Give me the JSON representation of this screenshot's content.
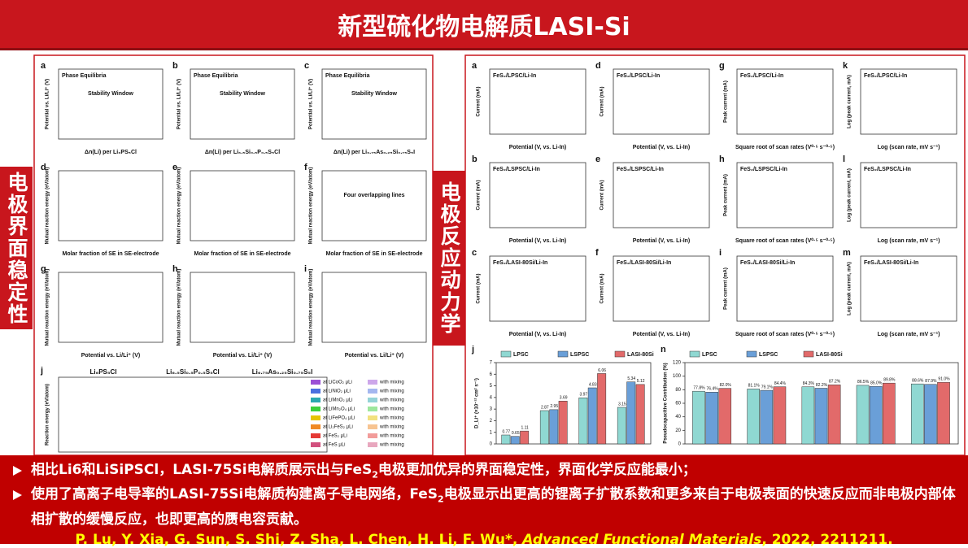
{
  "header": {
    "title": "新型硫化物电解质LASI-Si"
  },
  "side_labels": {
    "left": "电极界面稳定性",
    "right": "电极反应动力学"
  },
  "left_figure": {
    "panels": [
      {
        "letter": "a",
        "title": "Phase Equilibria",
        "xlabel": "Δn(Li) per Li₆PS₅Cl",
        "ylabel": "Potential vs. Li/Li⁺ (V)",
        "note": "Stability Window"
      },
      {
        "letter": "b",
        "title": "Phase Equilibria",
        "xlabel": "Δn(Li) per Li₆.₅Si₀.₅P₀.₅S₅Cl",
        "ylabel": "Potential vs. Li/Li⁺ (V)",
        "note": "Stability Window"
      },
      {
        "letter": "c",
        "title": "Phase Equilibria",
        "xlabel": "Δn(Li) per Li₆.₇₅As₀.₂₅Si₀.₇₅S₅I",
        "ylabel": "Potential vs. Li/Li⁺ (V)",
        "note": "Stability Window"
      },
      {
        "letter": "d",
        "xlabel": "Molar fraction of SE in SE-electrode",
        "ylabel": "Mutual reaction energy (eV/atom)"
      },
      {
        "letter": "e",
        "xlabel": "Molar fraction of SE in SE-electrode",
        "ylabel": "Mutual reaction energy (eV/atom)"
      },
      {
        "letter": "f",
        "xlabel": "Molar fraction of SE in SE-electrode",
        "ylabel": "Mutual reaction energy (eV/atom)",
        "note": "Four overlapping lines"
      },
      {
        "letter": "g",
        "xlabel": "Potential vs. Li/Li⁺ (V)",
        "ylabel": "Mutual reaction energy (eV/atom)"
      },
      {
        "letter": "h",
        "xlabel": "Potential vs. Li/Li⁺ (V)",
        "ylabel": "Mutual reaction energy (eV/atom)"
      },
      {
        "letter": "i",
        "xlabel": "Potential vs. Li/Li⁺ (V)",
        "ylabel": "Mutual reaction energy (eV/atom)"
      }
    ],
    "j": {
      "letter": "j",
      "ylabel": "Reaction energy (eV/atom)",
      "groups": [
        "Li₆PS₅Cl",
        "Li₆.₅Si₀.₅P₀.₅S₅Cl",
        "Li₆.₇₅As₀.₂₅Si₀.₇₅S₅I"
      ],
      "legend": [
        {
          "name": "at LiCoO₂ μLi",
          "color": "#9b4fd6"
        },
        {
          "name": "at LiNiO₂ μLi",
          "color": "#4a6fe0"
        },
        {
          "name": "at LiMnO₂ μLi",
          "color": "#2aa8b0"
        },
        {
          "name": "at LiMn₂O₄ μLi",
          "color": "#3ccf3c"
        },
        {
          "name": "at LiFePO₄ μLi",
          "color": "#e6c400"
        },
        {
          "name": "at Li₂FeS₂ μLi",
          "color": "#f08a24"
        },
        {
          "name": "at FeS₂ μLi",
          "color": "#e53935"
        },
        {
          "name": "at FeS μLi",
          "color": "#d2507e"
        }
      ],
      "mixing_label": "with mixing"
    }
  },
  "right_figure": {
    "panels": [
      {
        "letter": "a",
        "title": "FeS₂/LPSC/Li-In",
        "xlabel": "Potential (V, vs. Li-In)",
        "ylabel": "Current (mA)"
      },
      {
        "letter": "d",
        "title": "FeS₂/LPSC/Li-In",
        "xlabel": "Potential (V, vs. Li-In)",
        "ylabel": "Current (mA)"
      },
      {
        "letter": "g",
        "title": "FeS₂/LPSC/Li-In",
        "xlabel": "Square root of scan rates (V⁰·⁵ s⁻⁰·⁵)",
        "ylabel": "Peak current (mA)"
      },
      {
        "letter": "k",
        "title": "FeS₂/LPSC/Li-In",
        "xlabel": "Log (scan rate, mV s⁻¹)",
        "ylabel": "Log (peak current, mA)"
      },
      {
        "letter": "b",
        "title": "FeS₂/LSPSC/Li-In",
        "xlabel": "Potential (V, vs. Li-In)",
        "ylabel": "Current (mA)"
      },
      {
        "letter": "e",
        "title": "FeS₂/LSPSC/Li-In",
        "xlabel": "Potential (V, vs. Li-In)",
        "ylabel": "Current (mA)"
      },
      {
        "letter": "h",
        "title": "FeS₂/LSPSC/Li-In",
        "xlabel": "Square root of scan rates (V⁰·⁵ s⁻⁰·⁵)",
        "ylabel": "Peak current (mA)"
      },
      {
        "letter": "l",
        "title": "FeS₂/LSPSC/Li-In",
        "xlabel": "Log (scan rate, mV s⁻¹)",
        "ylabel": "Log (peak current, mA)"
      },
      {
        "letter": "c",
        "title": "FeS₂/LASI-80Si/Li-In",
        "xlabel": "Potential (V, vs. Li-In)",
        "ylabel": "Current (mA)"
      },
      {
        "letter": "f",
        "title": "FeS₂/LASI-80Si/Li-In",
        "xlabel": "Potential (V, vs. Li-In)",
        "ylabel": "Current (mA)"
      },
      {
        "letter": "i",
        "title": "FeS₂/LASI-80Si/Li-In",
        "xlabel": "Square root of scan rates (V⁰·⁵ s⁻⁰·⁵)",
        "ylabel": "Peak current (mA)"
      },
      {
        "letter": "m",
        "title": "FeS₂/LASI-80Si/Li-In",
        "xlabel": "Log (scan rate, mV s⁻¹)",
        "ylabel": "Log (peak current, mA)"
      }
    ],
    "j": {
      "type": "bar",
      "letter": "j",
      "ylabel": "D_Li⁺ (×10⁻¹² cm² s⁻¹)",
      "ylim": [
        0,
        7
      ],
      "yticks": [
        0,
        1,
        2,
        3,
        4,
        5,
        6,
        7
      ],
      "series": [
        {
          "name": "LPSC",
          "color": "#8fd8d2",
          "values": [
            0.77,
            2.87,
            3.97,
            3.15
          ]
        },
        {
          "name": "LSPSC",
          "color": "#6a9fd8",
          "values": [
            0.65,
            2.95,
            4.83,
            5.34
          ]
        },
        {
          "name": "LASI-80Si",
          "color": "#e26a6a",
          "values": [
            1.11,
            3.69,
            6.06,
            5.12
          ]
        }
      ]
    },
    "n": {
      "type": "bar",
      "letter": "n",
      "ylabel": "Pseudocapacitive Contribution (%)",
      "ylim": [
        0,
        120
      ],
      "yticks": [
        0,
        20,
        40,
        60,
        80,
        100,
        120
      ],
      "series": [
        {
          "name": "LPSC",
          "color": "#8fd8d2",
          "values": [
            77.8,
            81.1,
            84.3,
            86.5,
            88.6
          ],
          "value_labels": [
            "77.8%",
            "81.1%",
            "84.3%",
            "86.5%",
            "88.6%"
          ]
        },
        {
          "name": "LSPSC",
          "color": "#6a9fd8",
          "values": [
            76.4,
            79.1,
            82.2,
            85.0,
            87.9
          ],
          "value_labels": [
            "76.4%",
            "79.1%",
            "82.2%",
            "85.0%",
            "87.9%"
          ]
        },
        {
          "name": "LASI-80Si",
          "color": "#e26a6a",
          "values": [
            82.0,
            84.4,
            87.2,
            89.8,
            91.0
          ],
          "value_labels": [
            "82.0%",
            "84.4%",
            "87.2%",
            "89.8%",
            "91.0%"
          ]
        }
      ]
    }
  },
  "bullets": [
    {
      "parts": [
        "相比Li6和LiSiPSCl，LASI-75Si电解质展示出与FeS",
        "2",
        "电极更加优异的界面稳定性，界面化学反应能最小；"
      ]
    },
    {
      "parts": [
        "使用了高离子电导率的LASI-75Si电解质构建离子导电网络，FeS",
        "2",
        "电极显示出更高的锂离子扩散系数和更多来自于电极表面的快速反应而非电极内部体相扩散的缓慢反应，也即更高的赝电容贡献。"
      ]
    }
  ],
  "citation": {
    "authors": "P. Lu,  Y. Xia, G. Sun, S. Shi, Z. Sha, L. Chen, H. Li, F. Wu*, ",
    "journal": "Advanced Functional Materials",
    "tail": ", 2022, 2211211."
  }
}
